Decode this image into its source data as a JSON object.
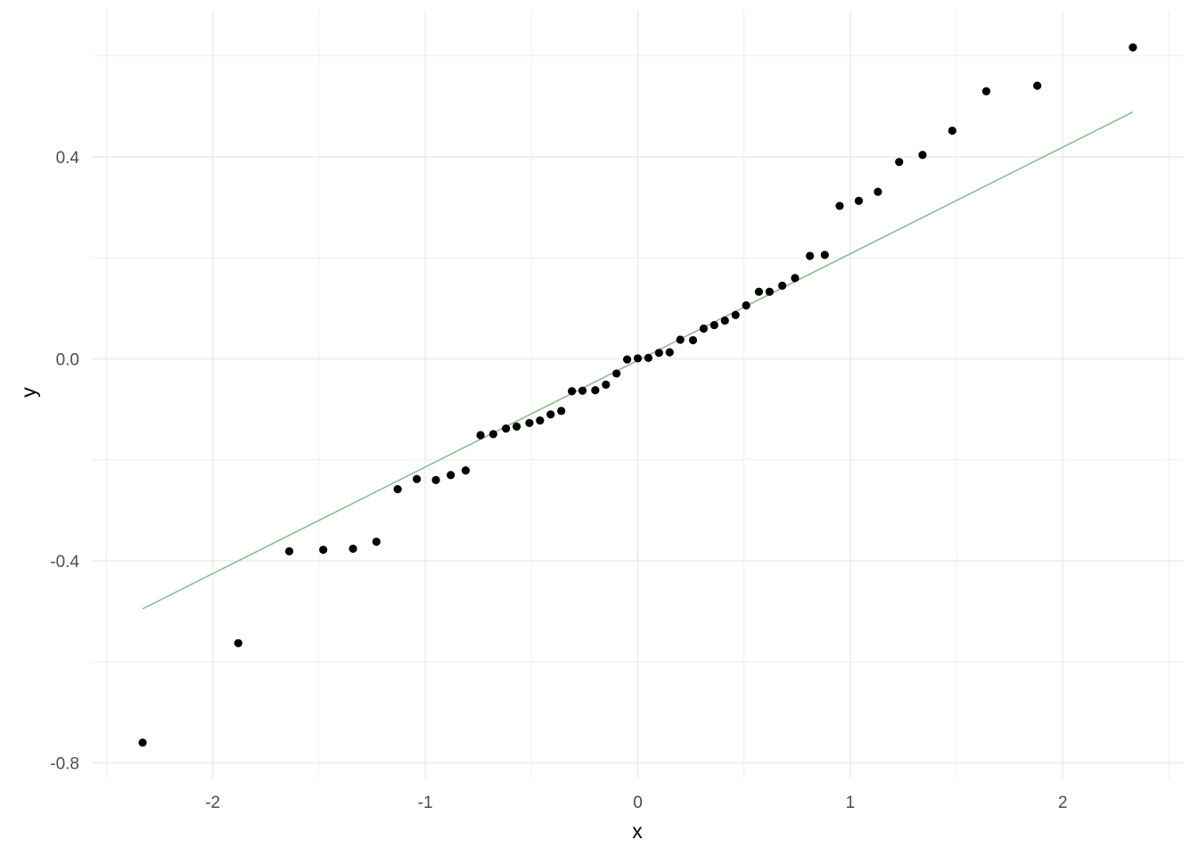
{
  "chart_data": {
    "type": "scatter",
    "xlabel": "x",
    "ylabel": "y",
    "xlim": [
      -2.5,
      2.5
    ],
    "ylim": [
      -0.82,
      0.68
    ],
    "x_ticks": [
      -2,
      -1,
      0,
      1,
      2
    ],
    "x_tick_labels": [
      "-2",
      "-1",
      "0",
      "1",
      "2"
    ],
    "y_ticks": [
      -0.8,
      -0.4,
      0.0,
      0.4
    ],
    "y_tick_labels": [
      "-0.8",
      "-0.4",
      "0.0",
      "0.4"
    ],
    "grid": true,
    "colors": {
      "points": "#000000",
      "line": "#8fbc8f",
      "grid": "#ebebeb"
    },
    "series": [
      {
        "x": [
          -2.33,
          -1.88,
          -1.64,
          -1.48,
          -1.34,
          -1.23,
          -1.13,
          -1.04,
          -0.95,
          -0.88,
          -0.81,
          -0.74,
          -0.68,
          -0.62,
          -0.57,
          -0.51,
          -0.46,
          -0.41,
          -0.36,
          -0.31,
          -0.26,
          -0.2,
          -0.15,
          -0.1,
          -0.05,
          0.0,
          0.05,
          0.1,
          0.15,
          0.2,
          0.26,
          0.31,
          0.36,
          0.41,
          0.46,
          0.51,
          0.57,
          0.62,
          0.68,
          0.74,
          0.81,
          0.88,
          0.95,
          1.04,
          1.13,
          1.23,
          1.34,
          1.48,
          1.64,
          1.88,
          2.33
        ],
        "y": [
          -0.76,
          -0.563,
          -0.381,
          -0.378,
          -0.376,
          -0.362,
          -0.258,
          -0.238,
          -0.24,
          -0.23,
          -0.221,
          -0.151,
          -0.149,
          -0.138,
          -0.134,
          -0.127,
          -0.122,
          -0.11,
          -0.103,
          -0.064,
          -0.063,
          -0.062,
          -0.051,
          -0.029,
          -0.001,
          0.001,
          0.002,
          0.012,
          0.013,
          0.038,
          0.037,
          0.06,
          0.067,
          0.076,
          0.087,
          0.106,
          0.133,
          0.133,
          0.145,
          0.16,
          0.204,
          0.206,
          0.303,
          0.313,
          0.331,
          0.39,
          0.404,
          0.452,
          0.53,
          0.541,
          0.617
        ]
      },
      {
        "type": "line",
        "x": [
          -2.33,
          2.33
        ],
        "y": [
          -0.495,
          0.489
        ]
      }
    ]
  }
}
